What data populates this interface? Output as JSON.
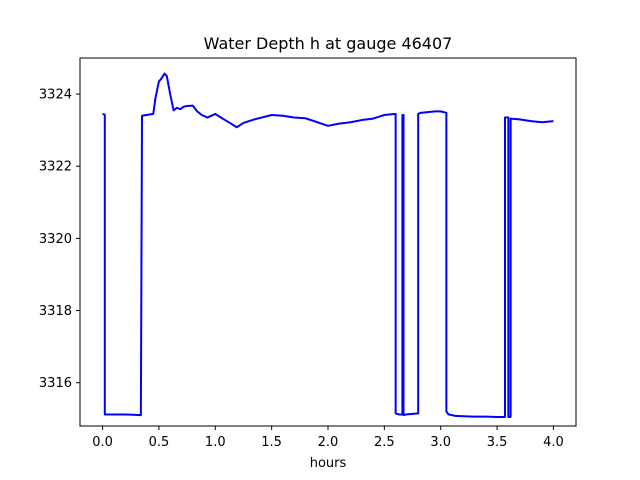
{
  "chart_data": {
    "type": "line",
    "title": "Water Depth h at gauge 46407",
    "xlabel": "hours",
    "ylabel": "",
    "xlim": [
      -0.2,
      4.2
    ],
    "ylim": [
      3314.8,
      3325.0
    ],
    "xticks": [
      0.0,
      0.5,
      1.0,
      1.5,
      2.0,
      2.5,
      3.0,
      3.5,
      4.0
    ],
    "xtick_labels": [
      "0.0",
      "0.5",
      "1.0",
      "1.5",
      "2.0",
      "2.5",
      "3.0",
      "3.5",
      "4.0"
    ],
    "yticks": [
      3316,
      3318,
      3320,
      3322,
      3324
    ],
    "ytick_labels": [
      "3316",
      "3318",
      "3320",
      "3322",
      "3324"
    ],
    "grid": false,
    "series": [
      {
        "color": "#0000ff",
        "x": [
          0.0,
          0.02,
          0.02,
          0.2,
          0.34,
          0.35,
          0.45,
          0.47,
          0.5,
          0.52,
          0.55,
          0.57,
          0.6,
          0.63,
          0.66,
          0.69,
          0.72,
          0.75,
          0.8,
          0.84,
          0.88,
          0.93,
          1.0,
          1.06,
          1.13,
          1.19,
          1.25,
          1.35,
          1.5,
          1.6,
          1.7,
          1.8,
          2.0,
          2.1,
          2.2,
          2.3,
          2.4,
          2.5,
          2.6,
          2.6,
          2.63,
          2.66,
          2.66,
          2.67,
          2.67,
          2.69,
          2.8,
          2.8,
          2.82,
          2.95,
          3.0,
          3.05,
          3.05,
          3.07,
          3.13,
          3.2,
          3.3,
          3.4,
          3.5,
          3.57,
          3.57,
          3.6,
          3.6,
          3.62,
          3.62,
          3.7,
          3.8,
          3.9,
          4.0
        ],
        "y": [
          3323.45,
          3323.43,
          3315.12,
          3315.12,
          3315.1,
          3323.4,
          3323.45,
          3323.9,
          3324.35,
          3324.42,
          3324.57,
          3324.5,
          3324.0,
          3323.55,
          3323.62,
          3323.58,
          3323.65,
          3323.67,
          3323.68,
          3323.52,
          3323.42,
          3323.35,
          3323.45,
          3323.33,
          3323.2,
          3323.08,
          3323.2,
          3323.3,
          3323.42,
          3323.4,
          3323.35,
          3323.33,
          3323.12,
          3323.18,
          3323.22,
          3323.28,
          3323.32,
          3323.42,
          3323.45,
          3315.15,
          3315.12,
          3315.12,
          3323.42,
          3323.42,
          3315.1,
          3315.12,
          3315.15,
          3323.45,
          3323.48,
          3323.52,
          3323.52,
          3323.48,
          3315.2,
          3315.12,
          3315.08,
          3315.07,
          3315.06,
          3315.06,
          3315.05,
          3315.05,
          3323.35,
          3323.35,
          3315.05,
          3315.05,
          3323.32,
          3323.3,
          3323.25,
          3323.22,
          3323.25
        ]
      }
    ]
  }
}
